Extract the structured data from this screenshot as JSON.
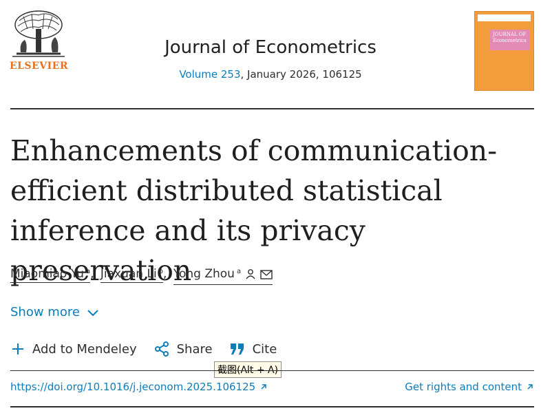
{
  "header": {
    "publisher": "ELSEVIER",
    "journal_title": "Journal of Econometrics",
    "volume_link": "Volume 253",
    "issue_info": ", January 2026, 106125",
    "cover_text": "JOURNAL OF Econometrics"
  },
  "article": {
    "title": "Enhancements of communication-efficient distributed statistical inference and its privacy preservation",
    "authors": [
      {
        "name": "Miaomiao Yu",
        "affil": "a"
      },
      {
        "name": "Jiaxuan Li",
        "affil": "b"
      },
      {
        "name": "Yong Zhou",
        "affil": "a"
      }
    ],
    "author_separator": ","
  },
  "show_more": {
    "label": "Show more"
  },
  "actions": {
    "mendeley": "Add to Mendeley",
    "share": "Share",
    "cite": "Cite"
  },
  "tooltip": {
    "text": "截图(Alt + A)"
  },
  "links": {
    "doi": "https://doi.org/10.1016/j.jeconom.2025.106125",
    "rights": "Get rights and content"
  },
  "colors": {
    "accent_blue": "#0c7dbb",
    "elsevier_orange": "#e9711c",
    "cover_orange": "#f39c3c"
  }
}
